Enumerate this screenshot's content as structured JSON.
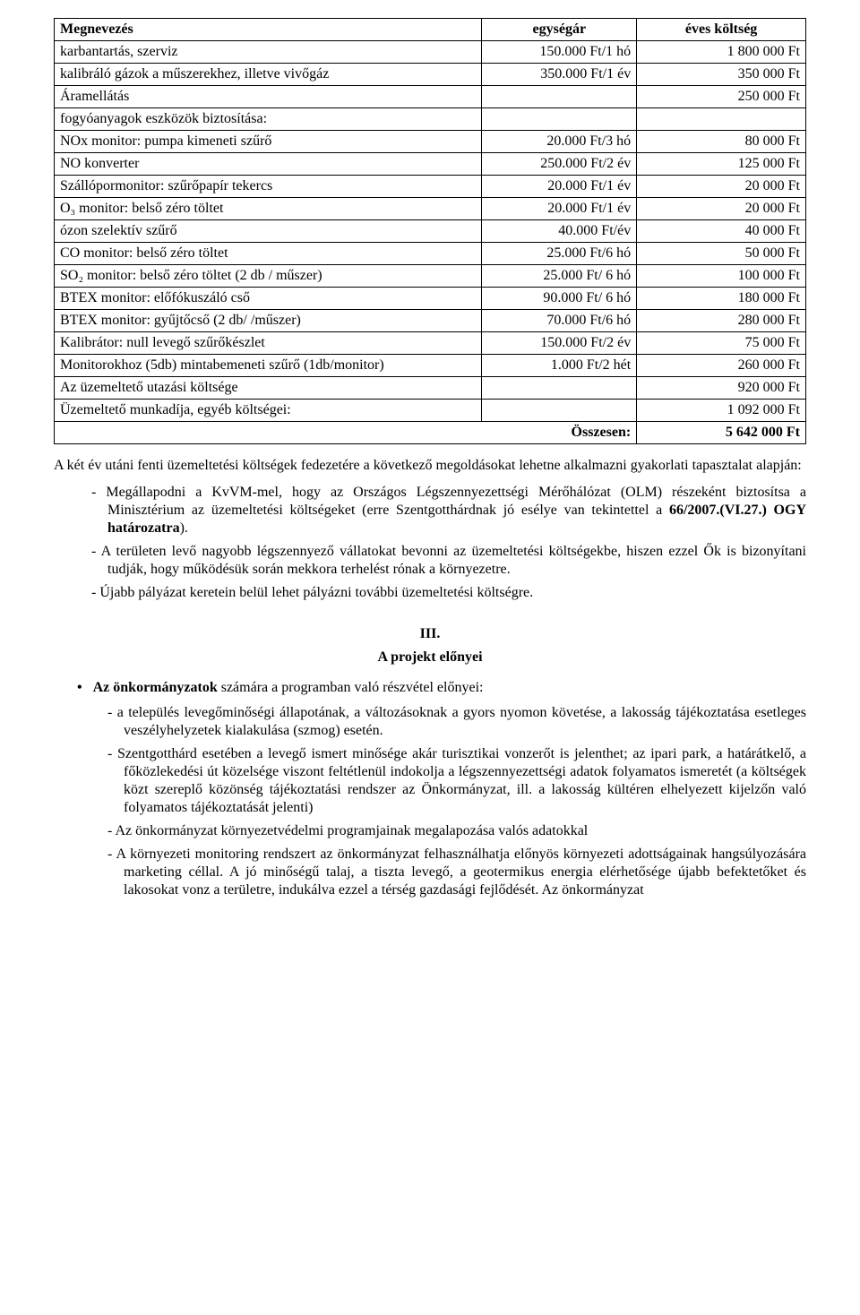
{
  "table": {
    "headers": [
      "Megnevezés",
      "egységár",
      "éves költség"
    ],
    "rows": [
      {
        "name": "karbantartás, szerviz",
        "unit": "150.000 Ft/1 hó",
        "amount": "1 800 000 Ft",
        "indent": false
      },
      {
        "name": "kalibráló gázok a műszerekhez, illetve vivőgáz",
        "unit": "350.000 Ft/1 év",
        "amount": "350 000 Ft",
        "indent": false
      },
      {
        "name": "Áramellátás",
        "unit": "",
        "amount": "250 000 Ft",
        "indent": false
      },
      {
        "name": "fogyóanyagok eszközök biztosítása:",
        "unit": "",
        "amount": "",
        "indent": false
      },
      {
        "name": "NOx monitor: pumpa kimeneti szűrő",
        "unit": "20.000 Ft/3 hó",
        "amount": "80 000 Ft",
        "indent": true
      },
      {
        "name": "NO konverter",
        "unit": "250.000 Ft/2 év",
        "amount": "125 000 Ft",
        "indent": true
      },
      {
        "name": "Szállópormonitor: szűrőpapír tekercs",
        "unit": "20.000 Ft/1 év",
        "amount": "20 000 Ft",
        "indent": true
      },
      {
        "name": "O₃ monitor: belső zéro töltet",
        "unit": "20.000 Ft/1 év",
        "amount": "20 000 Ft",
        "indent": true
      },
      {
        "name": "ózon szelektív szűrő",
        "unit": "40.000 Ft/év",
        "amount": "40 000 Ft",
        "indent": true
      },
      {
        "name": "CO monitor: belső zéro töltet",
        "unit": "25.000 Ft/6 hó",
        "amount": "50 000 Ft",
        "indent": true
      },
      {
        "name": "SO₂ monitor: belső zéro töltet            (2 db / műszer)",
        "unit": "25.000 Ft/ 6 hó",
        "amount": "100 000 Ft",
        "indent": true
      },
      {
        "name": "BTEX monitor: előfókuszáló cső",
        "unit": "90.000 Ft/ 6 hó",
        "amount": "180 000 Ft",
        "indent": true
      },
      {
        "name": "BTEX monitor: gyűjtőcső                    (2 db/ /műszer)",
        "unit": "70.000 Ft/6 hó",
        "amount": "280 000 Ft",
        "indent": true
      },
      {
        "name": "Kalibrátor: null levegő szűrőkészlet",
        "unit": "150.000 Ft/2 év",
        "amount": "75 000 Ft",
        "indent": true
      },
      {
        "name": "Monitorokhoz (5db) mintabemeneti szűrő (1db/monitor)",
        "unit": "1.000 Ft/2 hét",
        "amount": "260 000 Ft",
        "indent": true
      },
      {
        "name": "Az üzemeltető utazási költsége",
        "unit": "",
        "amount": "920 000 Ft",
        "indent": false
      },
      {
        "name": "Üzemeltető munkadíja, egyéb költségei:",
        "unit": "",
        "amount": "1 092 000 Ft",
        "indent": false
      }
    ],
    "total_label": "Összesen:",
    "total_amount": "5 642 000 Ft"
  },
  "para_intro": "A két év utáni fenti üzemeltetési költségek fedezetére a következő megoldásokat lehetne alkalmazni gyakorlati tapasztalat alapján:",
  "options": {
    "opt1_pre": "Megállapodni a KvVM-mel, hogy az Országos Légszennyezettségi Mérőhálózat (OLM) részeként biztosítsa a Minisztérium az üzemeltetési költségeket (erre Szentgotthárdnak jó esélye van tekintettel a ",
    "opt1_bold": "66/2007.(VI.27.) OGY határozatra",
    "opt1_post": ").",
    "opt2": "A területen levő nagyobb légszennyező vállatokat bevonni az üzemeltetési költségekbe, hiszen ezzel Ők is bizonyítani tudják, hogy működésük során mekkora terhelést rónak a környezetre.",
    "opt3": "Újabb pályázat keretein belül lehet pályázni további üzemeltetési költségre."
  },
  "section": {
    "num": "III.",
    "title": "A projekt előnyei",
    "lead_pre": "Az önkormányzatok",
    "lead_post": " számára a programban való részvétel előnyei:",
    "items": [
      "a település levegőminőségi állapotának, a változásoknak a gyors nyomon követése, a lakosság tájékoztatása esetleges veszélyhelyzetek kialakulása (szmog) esetén.",
      "Szentgotthárd esetében a levegő ismert minősége akár turisztikai vonzerőt is jelenthet; az ipari park, a határátkelő, a főközlekedési út közelsége viszont feltétlenül indokolja a légszennyezettségi adatok folyamatos ismeretét (a költségek közt szereplő közönség tájékoztatási rendszer az Önkormányzat, ill. a lakosság kültéren elhelyezett kijelzőn való folyamatos tájékoztatását jelenti)",
      "Az önkormányzat környezetvédelmi programjainak megalapozása valós adatokkal",
      "A környezeti monitoring rendszert az önkormányzat felhasználhatja előnyös környezeti adottságainak hangsúlyozására marketing céllal. A jó minőségű talaj, a tiszta levegő, a geotermikus energia elérhetősége újabb befektetőket és lakosokat vonz a területre, indukálva ezzel a térség gazdasági fejlődését. Az önkormányzat"
    ]
  }
}
